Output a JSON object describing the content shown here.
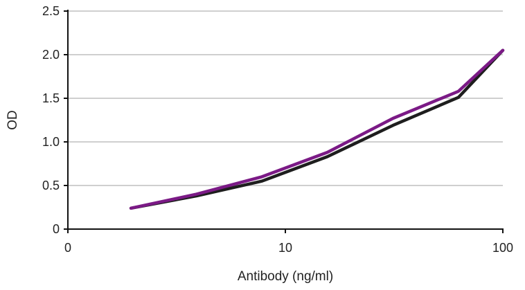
{
  "chart_data": {
    "type": "line",
    "xlabel": "Antibody (ng/ml)",
    "ylabel": "OD",
    "x_scale": "log",
    "xlim": [
      1,
      100
    ],
    "ylim": [
      0,
      2.5
    ],
    "grid": {
      "y": true,
      "x": false
    },
    "x_ticks": [
      {
        "value": 1,
        "label": "0"
      },
      {
        "value": 10,
        "label": "10"
      },
      {
        "value": 100,
        "label": "100"
      }
    ],
    "y_ticks": [
      {
        "value": 0,
        "label": "0"
      },
      {
        "value": 0.5,
        "label": "0.5"
      },
      {
        "value": 1.0,
        "label": "1.0"
      },
      {
        "value": 1.5,
        "label": "1.5"
      },
      {
        "value": 2.0,
        "label": "2.0"
      },
      {
        "value": 2.5,
        "label": "2.5"
      }
    ],
    "series": [
      {
        "color": "#1e1e1e",
        "points": [
          {
            "x": 1.95,
            "y": 0.24
          },
          {
            "x": 3.9,
            "y": 0.38
          },
          {
            "x": 7.8,
            "y": 0.55
          },
          {
            "x": 15.6,
            "y": 0.83
          },
          {
            "x": 31.25,
            "y": 1.19
          },
          {
            "x": 62.5,
            "y": 1.51
          },
          {
            "x": 100,
            "y": 2.05
          }
        ]
      },
      {
        "color": "#7b1a86",
        "points": [
          {
            "x": 1.95,
            "y": 0.24
          },
          {
            "x": 3.9,
            "y": 0.4
          },
          {
            "x": 7.8,
            "y": 0.6
          },
          {
            "x": 15.6,
            "y": 0.88
          },
          {
            "x": 31.25,
            "y": 1.27
          },
          {
            "x": 62.5,
            "y": 1.58
          },
          {
            "x": 100,
            "y": 2.05
          }
        ]
      }
    ]
  }
}
